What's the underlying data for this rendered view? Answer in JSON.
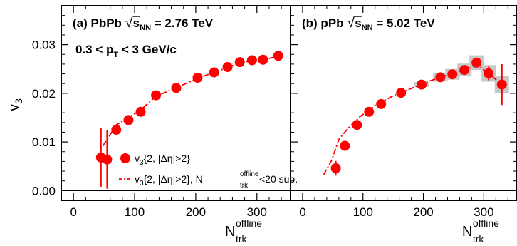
{
  "chart_data": [
    {
      "panel": "a",
      "type": "scatter",
      "label": {
        "tag": "(a) PbPb",
        "sqrt": "s",
        "sqrt_sub": "NN",
        "rest": "= 2.76 TeV"
      },
      "cut_label": {
        "pre": "0.3 < p",
        "sub": "T",
        "post": "< 3 GeV/c"
      },
      "ylabel": {
        "main": "v",
        "sub": "3"
      },
      "xlabel": {
        "main": "N",
        "sup": "offline",
        "sub": "trk"
      },
      "xlim": [
        -20,
        355
      ],
      "ylim": [
        -0.002,
        0.038
      ],
      "xticks": [
        0,
        100,
        200,
        300
      ],
      "yticks": [
        0.0,
        0.01,
        0.02,
        0.03
      ],
      "ytick_labels": [
        "0.00",
        "0.01",
        "0.02",
        "0.03"
      ],
      "series": [
        {
          "name": "v3{2, |Δη|>2}",
          "color": "#ff0000",
          "marker": "circle",
          "points": [
            {
              "x": 45,
              "y": 0.0068,
              "err": 0.006
            },
            {
              "x": 55,
              "y": 0.0064,
              "err": 0.006
            },
            {
              "x": 70,
              "y": 0.0125,
              "err": 0.0006
            },
            {
              "x": 90,
              "y": 0.0145,
              "err": 0.0005
            },
            {
              "x": 110,
              "y": 0.0162,
              "err": 0.0004
            },
            {
              "x": 135,
              "y": 0.0196,
              "err": 0.0004
            },
            {
              "x": 168,
              "y": 0.0211,
              "err": 0.0003
            },
            {
              "x": 203,
              "y": 0.0232,
              "err": 0.0003
            },
            {
              "x": 230,
              "y": 0.0243,
              "err": 0.0003
            },
            {
              "x": 252,
              "y": 0.0254,
              "err": 0.0003
            },
            {
              "x": 272,
              "y": 0.0264,
              "err": 0.0003
            },
            {
              "x": 292,
              "y": 0.0268,
              "err": 0.0003
            },
            {
              "x": 310,
              "y": 0.0269,
              "err": 0.0003
            },
            {
              "x": 335,
              "y": 0.0277,
              "err": 0.0003
            }
          ]
        },
        {
          "name": "v3{2, |Δη|>2}, N_trk^offline<20 sub.",
          "color": "#ff0000",
          "style": "dash-dot",
          "points": [
            {
              "x": 48,
              "y": 0.0092
            },
            {
              "x": 55,
              "y": 0.0105
            },
            {
              "x": 70,
              "y": 0.0135
            },
            {
              "x": 90,
              "y": 0.015
            },
            {
              "x": 110,
              "y": 0.0166
            },
            {
              "x": 135,
              "y": 0.0194
            },
            {
              "x": 168,
              "y": 0.0211
            },
            {
              "x": 203,
              "y": 0.0231
            },
            {
              "x": 230,
              "y": 0.0243
            },
            {
              "x": 252,
              "y": 0.0253
            },
            {
              "x": 272,
              "y": 0.0263
            },
            {
              "x": 292,
              "y": 0.0267
            },
            {
              "x": 310,
              "y": 0.0269
            },
            {
              "x": 335,
              "y": 0.0276
            }
          ]
        }
      ],
      "legend": [
        {
          "kind": "marker",
          "pre": "v",
          "sub": "3",
          "post": "{2, |Δη|>2}"
        },
        {
          "kind": "line",
          "pre": "v",
          "sub": "3",
          "post": "{2, |Δη|>2}, N",
          "sup2": "offline",
          "sub2": "trk",
          "post2": "<20 sub."
        }
      ],
      "legend_placement": "bottom-right"
    },
    {
      "panel": "b",
      "type": "scatter",
      "label": {
        "tag": "(b) pPb",
        "sqrt": "s",
        "sqrt_sub": "NN",
        "rest": "= 5.02 TeV"
      },
      "xlabel": {
        "main": "N",
        "sup": "offline",
        "sub": "trk"
      },
      "xlim": [
        -20,
        355
      ],
      "ylim": [
        -0.002,
        0.038
      ],
      "xticks": [
        0,
        100,
        200,
        300
      ],
      "series": [
        {
          "name": "v3{2, |Δη|>2}",
          "color": "#ff0000",
          "marker": "circle",
          "points": [
            {
              "x": 55,
              "y": 0.0046,
              "err": 0.0015,
              "syst": 0.0
            },
            {
              "x": 70,
              "y": 0.0092,
              "err": 0.0003,
              "syst": 0.0
            },
            {
              "x": 90,
              "y": 0.0135,
              "err": 0.0003,
              "syst": 0.0
            },
            {
              "x": 110,
              "y": 0.0162,
              "err": 0.0003,
              "syst": 0.0
            },
            {
              "x": 130,
              "y": 0.0178,
              "err": 0.0003,
              "syst": 0.0
            },
            {
              "x": 163,
              "y": 0.0201,
              "err": 0.0003,
              "syst": 0.0
            },
            {
              "x": 197,
              "y": 0.0218,
              "err": 0.0003,
              "syst": 0.0005
            },
            {
              "x": 228,
              "y": 0.0233,
              "err": 0.0003,
              "syst": 0.0009
            },
            {
              "x": 248,
              "y": 0.0239,
              "err": 0.0004,
              "syst": 0.0011
            },
            {
              "x": 268,
              "y": 0.0248,
              "err": 0.0005,
              "syst": 0.0013
            },
            {
              "x": 288,
              "y": 0.0263,
              "err": 0.0008,
              "syst": 0.0015
            },
            {
              "x": 308,
              "y": 0.0241,
              "err": 0.0014,
              "syst": 0.0017
            },
            {
              "x": 330,
              "y": 0.0218,
              "err": 0.0042,
              "syst": 0.0018
            }
          ]
        },
        {
          "name": "v3{2, |Δη|>2}, N_trk^offline<20 sub.",
          "color": "#ff0000",
          "style": "dash-dot",
          "points": [
            {
              "x": 35,
              "y": 0.0033
            },
            {
              "x": 48,
              "y": 0.0062
            },
            {
              "x": 60,
              "y": 0.0105
            },
            {
              "x": 75,
              "y": 0.0128
            },
            {
              "x": 95,
              "y": 0.0152
            },
            {
              "x": 120,
              "y": 0.0175
            },
            {
              "x": 150,
              "y": 0.0195
            },
            {
              "x": 180,
              "y": 0.021
            },
            {
              "x": 210,
              "y": 0.0225
            },
            {
              "x": 240,
              "y": 0.0238
            },
            {
              "x": 270,
              "y": 0.0249
            },
            {
              "x": 290,
              "y": 0.0257
            },
            {
              "x": 308,
              "y": 0.0241
            },
            {
              "x": 330,
              "y": 0.0218
            }
          ]
        }
      ]
    }
  ]
}
